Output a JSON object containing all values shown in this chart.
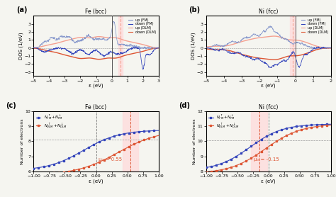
{
  "panel_titles": [
    "Fe (bcc)",
    "Ni (fcc)",
    "Fe (bcc)",
    "Ni (fcc)"
  ],
  "dos_xlim_fe": [
    -5,
    3
  ],
  "dos_xlim_ni": [
    -5,
    2
  ],
  "dos_ylim": [
    -3.5,
    4.0
  ],
  "dos_yticks": [
    -3,
    -2,
    -1,
    0,
    1,
    2,
    3
  ],
  "dos_xlabel": "ε (eV)",
  "dos_ylabel": "DOS (1/eV)",
  "intdos_xlim": [
    -1,
    1
  ],
  "intdos_xlabel": "ε (eV)",
  "intdos_ylabel": "Number of electrons",
  "fe_intdos_ylim": [
    6,
    10
  ],
  "ni_intdos_ylim": [
    8,
    12
  ],
  "fe_intdos_yticks": [
    6,
    7,
    8,
    9,
    10
  ],
  "ni_intdos_yticks": [
    8,
    9,
    10,
    11,
    12
  ],
  "fe_fermi": 0.0,
  "ni_fermi": 0.0,
  "fe_dlm_fermi": 0.55,
  "ni_dlm_fermi": -0.15,
  "fe_horizontal": 8.1,
  "ni_horizontal": 10.05,
  "fe_mu_text": "μ₀ = 0.55",
  "ni_mu_text": "μ₀ = -0.15",
  "color_fm_light": "#8899cc",
  "color_fm_dark": "#3344bb",
  "color_dlm_light": "#f4a090",
  "color_dlm_dark": "#dd5533",
  "fermi_band_color": "#ffdddd",
  "legend_labels": [
    "up (FM)",
    "down (FM)",
    "up (DLM)",
    "down (DLM)"
  ],
  "background_color": "#f5f5f0"
}
